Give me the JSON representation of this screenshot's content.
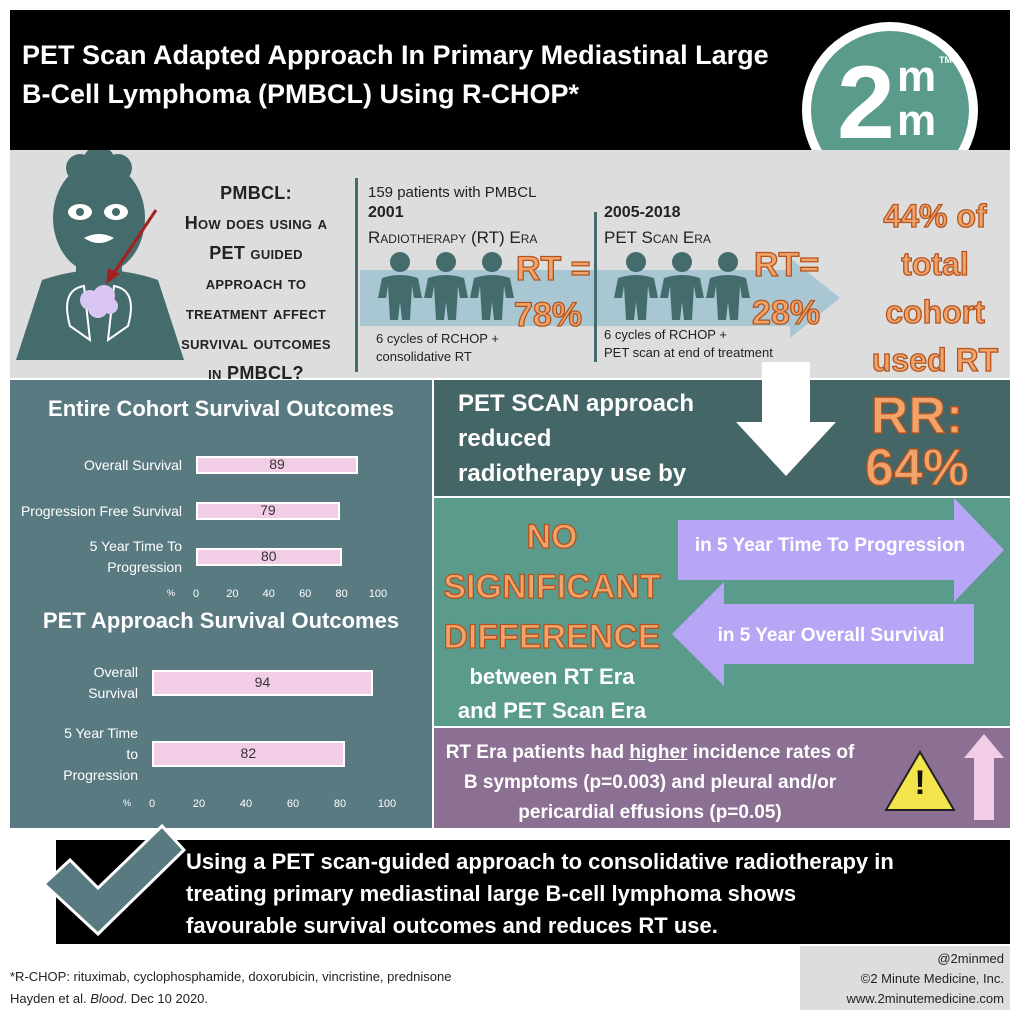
{
  "title": "PET Scan Adapted Approach In Primary Mediastinal Large B-Cell Lymphoma (PMBCL) Using R-CHOP*",
  "logo": {
    "main": "2",
    "m_top": "m",
    "m_bottom": "m",
    "tm": "TM"
  },
  "question": {
    "lines": [
      "PMBCL:",
      "How does using a",
      "PET guided",
      "approach to",
      "treatment affect",
      "survival outcomes",
      "in PMBCL?"
    ]
  },
  "study": {
    "patients": "159 patients with PMBCL",
    "era1": {
      "year": "2001",
      "name": "Radiotherapy (RT) Era",
      "rt_label": "RT =",
      "rt_value": "78%",
      "treatment_lines": [
        "6 cycles of RCHOP +",
        "consolidative RT"
      ]
    },
    "era2": {
      "year": "2005-2018",
      "name": "PET Scan Era",
      "rt_label": "RT=",
      "rt_value": "28%",
      "treatment_lines": [
        "6 cycles of RCHOP +",
        "PET scan at end of treatment"
      ]
    },
    "total_lines": [
      "44% of",
      "total",
      "cohort",
      "used RT"
    ]
  },
  "rr": {
    "text_lines": [
      "PET SCAN approach",
      "reduced",
      "radiotherapy use by"
    ],
    "label": "RR:",
    "value": "64%"
  },
  "no_sig": {
    "lines": [
      "NO",
      "SIGNIFICANT",
      "DIFFERENCE"
    ],
    "between_lines": [
      "between RT Era",
      "and PET Scan Era"
    ],
    "arrow_right": "in 5 Year Time To Progression",
    "arrow_left": "in 5 Year Overall Survival"
  },
  "b_symptoms": {
    "prefix": "RT Era patients had ",
    "emph": "higher",
    "suffix": " incidence rates of",
    "line2": "B symptoms (p=0.003) and pleural and/or",
    "line3": "pericardial effusions (p=0.05)",
    "warning_glyph": "!"
  },
  "conclusion": {
    "lines": [
      "Using a PET scan-guided approach to consolidative radiotherapy in",
      "treating primary mediastinal large B-cell lymphoma shows",
      "favourable survival outcomes and reduces RT use."
    ]
  },
  "footnote": {
    "rchop": "*R-CHOP: rituximab, cyclophosphamide, doxorubicin, vincristine, prednisone",
    "cite_pre": "Hayden et al. ",
    "cite_journal": "Blood",
    "cite_post": ". Dec 10 2020."
  },
  "credit": {
    "handle": "@2minmed",
    "company": "©2 Minute Medicine, Inc.",
    "url": "www.2minutemedicine.com"
  },
  "colors": {
    "teal": "#5a9b8c",
    "dark_teal": "#456666",
    "slate": "#5a7a82",
    "pink": "#f1cde6",
    "lavender": "#b6a6f5",
    "purple": "#8c7093",
    "orange": "#f0a46c"
  },
  "chart_data": [
    {
      "type": "bar",
      "orientation": "horizontal",
      "title": "Entire Cohort Survival Outcomes",
      "categories": [
        "Overall Survival",
        "Progression Free Survival",
        "5 Year Time To Progression"
      ],
      "category_lines": [
        [
          "Overall Survival"
        ],
        [
          "Progression Free Survival"
        ],
        [
          "5 Year Time To",
          "Progression"
        ]
      ],
      "values": [
        89,
        79,
        80
      ],
      "xlabel": "%",
      "xlim": [
        0,
        100
      ],
      "xticks": [
        0,
        20,
        40,
        60,
        80,
        100
      ],
      "grid": false
    },
    {
      "type": "bar",
      "orientation": "horizontal",
      "title": "PET Approach Survival Outcomes",
      "categories": [
        "Overall Survival",
        "5 Year Time to Progression"
      ],
      "category_lines": [
        [
          "Overall",
          "Survival"
        ],
        [
          "5 Year Time",
          "to",
          "Progression"
        ]
      ],
      "values": [
        94,
        82
      ],
      "xlabel": "%",
      "xlim": [
        0,
        100
      ],
      "xticks": [
        0,
        20,
        40,
        60,
        80,
        100
      ],
      "grid": false
    }
  ]
}
